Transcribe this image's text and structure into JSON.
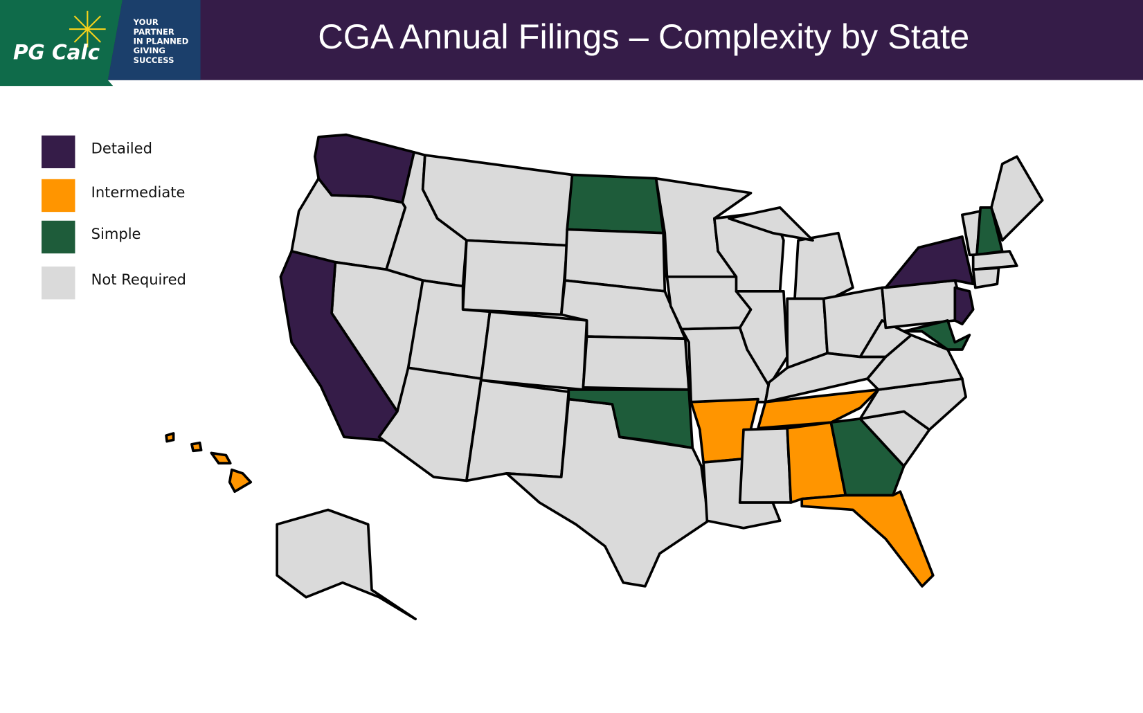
{
  "header": {
    "logo": "PG Calc",
    "tagline": [
      "YOUR",
      "PARTNER",
      "IN PLANNED",
      "GIVING",
      "SUCCESS"
    ],
    "title": "CGA Annual Filings – Complexity by State"
  },
  "legend": [
    {
      "name": "Detailed",
      "color": "#351c48"
    },
    {
      "name": "Intermediate",
      "color": "#ff9500"
    },
    {
      "name": "Simple",
      "color": "#1e5c3a"
    },
    {
      "name": "Not Required",
      "color": "#dadada"
    }
  ]
}
